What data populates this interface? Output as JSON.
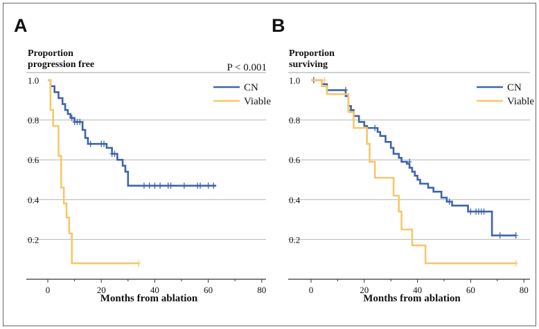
{
  "colors": {
    "cn": "#3e64a8",
    "viable": "#f4c86a",
    "grid": "#b4b4b4",
    "axis": "#333333",
    "text": "#111111",
    "border": "#666666"
  },
  "chart_data": [
    {
      "panel": "A",
      "type": "line",
      "subtype": "kaplan-meier step",
      "ylabel": "Proportion progression free",
      "ylabel_lines": [
        "Proportion",
        "progression free"
      ],
      "xlabel": "Months from ablation",
      "annotation": "P < 0.001",
      "xlim": [
        -8,
        80
      ],
      "ylim": [
        0,
        1.05
      ],
      "xticks": [
        0,
        20,
        40,
        60,
        80
      ],
      "yticks": [
        0.2,
        0.4,
        0.6,
        0.8,
        1.0
      ],
      "ytick_labels": [
        "0.2",
        "0.4",
        "0.6",
        "0.8",
        "1.0"
      ],
      "grid": "horizontal",
      "legend": "top-right",
      "series": [
        {
          "name": "CN",
          "color_key": "cn",
          "steps": [
            [
              0,
              1.0
            ],
            [
              1,
              0.97
            ],
            [
              2.5,
              0.94
            ],
            [
              4,
              0.91
            ],
            [
              5.5,
              0.88
            ],
            [
              6.5,
              0.85
            ],
            [
              7.5,
              0.83
            ],
            [
              8.5,
              0.81
            ],
            [
              10,
              0.79
            ],
            [
              13,
              0.75
            ],
            [
              14,
              0.71
            ],
            [
              15,
              0.68
            ],
            [
              22,
              0.66
            ],
            [
              24,
              0.63
            ],
            [
              26,
              0.6
            ],
            [
              28,
              0.57
            ],
            [
              29,
              0.54
            ],
            [
              30,
              0.47
            ],
            [
              63,
              0.47
            ]
          ],
          "censors": [
            [
              9,
              0.81
            ],
            [
              10,
              0.79
            ],
            [
              11,
              0.79
            ],
            [
              12,
              0.79
            ],
            [
              16,
              0.68
            ],
            [
              20,
              0.68
            ],
            [
              21,
              0.68
            ],
            [
              24,
              0.63
            ],
            [
              25,
              0.63
            ],
            [
              36,
              0.47
            ],
            [
              38,
              0.47
            ],
            [
              40,
              0.47
            ],
            [
              42,
              0.47
            ],
            [
              45,
              0.47
            ],
            [
              46,
              0.47
            ],
            [
              51,
              0.47
            ],
            [
              56,
              0.47
            ],
            [
              57,
              0.47
            ],
            [
              60,
              0.47
            ],
            [
              62,
              0.47
            ]
          ]
        },
        {
          "name": "Viable",
          "color_key": "viable",
          "steps": [
            [
              0,
              1.0
            ],
            [
              1,
              0.85
            ],
            [
              2,
              0.77
            ],
            [
              4,
              0.62
            ],
            [
              5,
              0.46
            ],
            [
              6,
              0.38
            ],
            [
              7,
              0.31
            ],
            [
              8,
              0.23
            ],
            [
              9,
              0.08
            ],
            [
              34,
              0.08
            ]
          ],
          "censors": [
            [
              34,
              0.08
            ]
          ]
        }
      ]
    },
    {
      "panel": "B",
      "type": "line",
      "subtype": "kaplan-meier step",
      "ylabel": "Proportion surviving",
      "ylabel_lines": [
        "Proportion",
        "surviving"
      ],
      "xlabel": "Months from ablation",
      "annotation": "",
      "xlim": [
        -8,
        80
      ],
      "ylim": [
        0,
        1.05
      ],
      "xticks": [
        0,
        20,
        40,
        60,
        80
      ],
      "yticks": [
        0.2,
        0.4,
        0.6,
        0.8,
        1.0
      ],
      "ytick_labels": [
        "0.2",
        "0.4",
        "0.6",
        "0.8",
        "1.0"
      ],
      "grid": "horizontal",
      "legend": "top-right",
      "series": [
        {
          "name": "CN",
          "color_key": "cn",
          "steps": [
            [
              0,
              1.0
            ],
            [
              4,
              0.98
            ],
            [
              6,
              0.95
            ],
            [
              13,
              0.92
            ],
            [
              14,
              0.87
            ],
            [
              15,
              0.85
            ],
            [
              16,
              0.82
            ],
            [
              18,
              0.79
            ],
            [
              20,
              0.77
            ],
            [
              21,
              0.76
            ],
            [
              25,
              0.74
            ],
            [
              26,
              0.72
            ],
            [
              28,
              0.69
            ],
            [
              30,
              0.66
            ],
            [
              31,
              0.63
            ],
            [
              33,
              0.61
            ],
            [
              34,
              0.59
            ],
            [
              36,
              0.58
            ],
            [
              37,
              0.56
            ],
            [
              38,
              0.54
            ],
            [
              39,
              0.52
            ],
            [
              40,
              0.5
            ],
            [
              41,
              0.48
            ],
            [
              44,
              0.46
            ],
            [
              46,
              0.44
            ],
            [
              49,
              0.41
            ],
            [
              51,
              0.39
            ],
            [
              53,
              0.37
            ],
            [
              59,
              0.34
            ],
            [
              68,
              0.22
            ],
            [
              77,
              0.22
            ]
          ],
          "censors": [
            [
              1,
              1.0
            ],
            [
              13,
              0.95
            ],
            [
              15,
              0.85
            ],
            [
              24,
              0.76
            ],
            [
              37,
              0.59
            ],
            [
              52,
              0.39
            ],
            [
              60,
              0.34
            ],
            [
              62,
              0.34
            ],
            [
              63,
              0.34
            ],
            [
              64,
              0.34
            ],
            [
              65,
              0.34
            ],
            [
              71,
              0.22
            ],
            [
              77,
              0.22
            ]
          ]
        },
        {
          "name": "Viable",
          "color_key": "viable",
          "steps": [
            [
              0,
              1.0
            ],
            [
              4,
              0.97
            ],
            [
              6,
              0.93
            ],
            [
              14,
              0.84
            ],
            [
              16,
              0.76
            ],
            [
              21,
              0.68
            ],
            [
              22,
              0.59
            ],
            [
              24,
              0.51
            ],
            [
              31,
              0.42
            ],
            [
              33,
              0.34
            ],
            [
              34,
              0.25
            ],
            [
              38,
              0.17
            ],
            [
              43,
              0.08
            ],
            [
              77,
              0.08
            ]
          ],
          "censors": [
            [
              5,
              1.0
            ],
            [
              77,
              0.08
            ]
          ]
        }
      ]
    }
  ]
}
